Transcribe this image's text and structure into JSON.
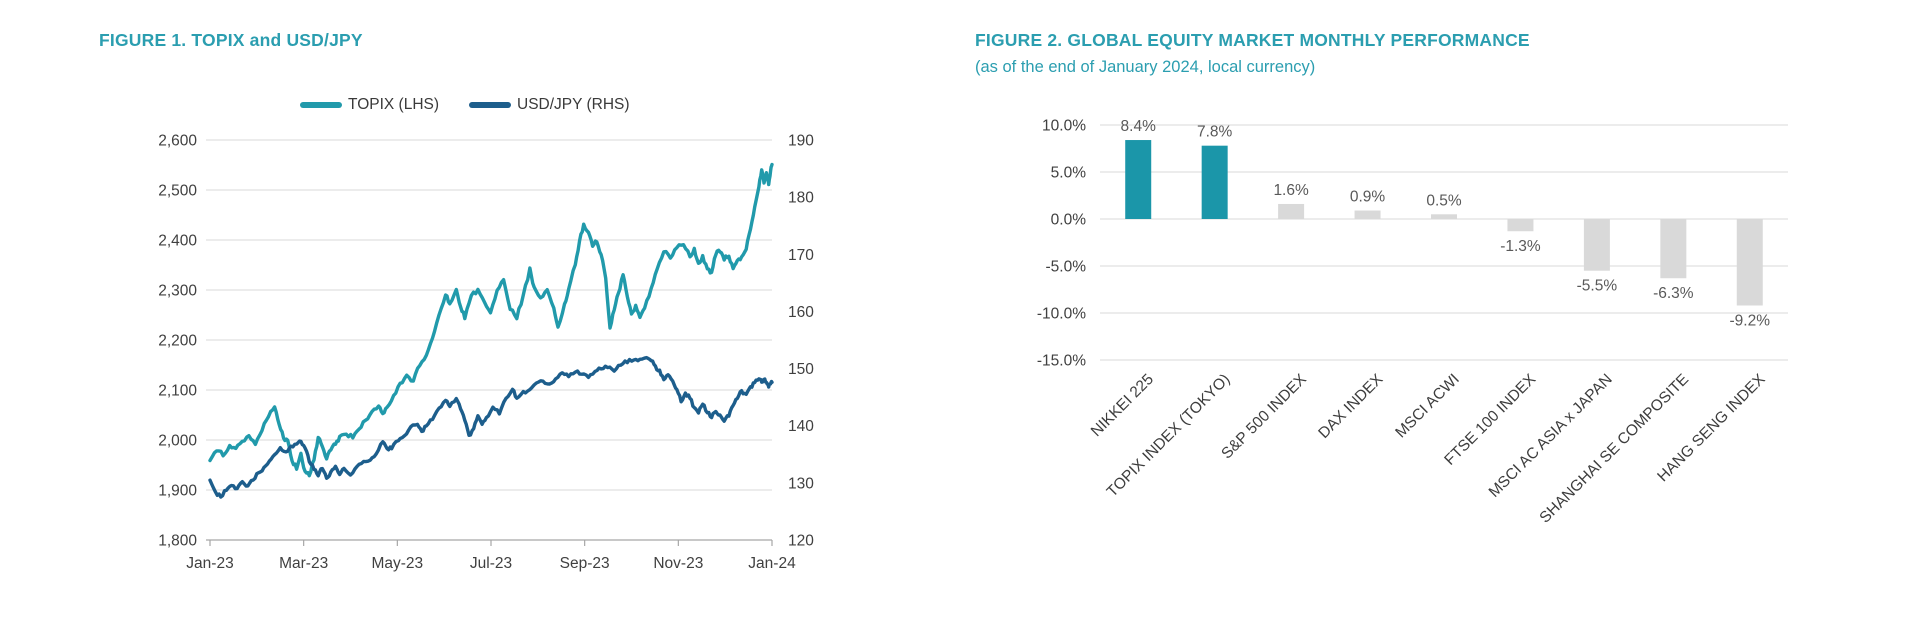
{
  "colors": {
    "title_teal": "#2b9eb0",
    "topix_teal": "#219aab",
    "usdjpy_blue": "#1d5e8c",
    "bar_highlight": "#1b96a9",
    "bar_default": "#d9d9d9",
    "grid": "#d9d9d9",
    "axis_line": "#a6a6a6",
    "axis_text": "#404040",
    "value_label_text": "#595959",
    "category_text": "#3d3d3d"
  },
  "chart_data": [
    {
      "type": "line",
      "title": "FIGURE 1. TOPIX and USD/JPY",
      "x_tick_labels": [
        "Jan-23",
        "Mar-23",
        "May-23",
        "Jul-23",
        "Sep-23",
        "Nov-23",
        "Jan-24"
      ],
      "x_tick_positions": [
        0,
        2,
        4,
        6,
        8,
        10,
        12
      ],
      "x_range_months": [
        0,
        12
      ],
      "grid": "on",
      "legend_position": "top",
      "y_left": {
        "range": [
          1800,
          2600
        ],
        "step": 100,
        "tick_labels": [
          "2,600",
          "2,500",
          "2,400",
          "2,300",
          "2,200",
          "2,100",
          "2,000",
          "1,900",
          "1,800"
        ]
      },
      "y_right": {
        "range": [
          120,
          190
        ],
        "step": 10,
        "tick_labels": [
          "190",
          "180",
          "170",
          "160",
          "150",
          "140",
          "130",
          "120"
        ]
      },
      "series": [
        {
          "name": "TOPIX (LHS)",
          "axis": "left",
          "color": "#219aab",
          "points": [
            [
              0,
              1958
            ],
            [
              0.14,
              1980
            ],
            [
              0.28,
              1970
            ],
            [
              0.42,
              1990
            ],
            [
              0.55,
              1984
            ],
            [
              0.69,
              1996
            ],
            [
              0.83,
              2008
            ],
            [
              0.97,
              1992
            ],
            [
              1.11,
              2020
            ],
            [
              1.25,
              2046
            ],
            [
              1.38,
              2068
            ],
            [
              1.48,
              2030
            ],
            [
              1.57,
              2004
            ],
            [
              1.66,
              1998
            ],
            [
              1.75,
              1960
            ],
            [
              1.85,
              1942
            ],
            [
              1.94,
              1972
            ],
            [
              2.03,
              1936
            ],
            [
              2.12,
              1930
            ],
            [
              2.22,
              1962
            ],
            [
              2.31,
              2006
            ],
            [
              2.4,
              1986
            ],
            [
              2.49,
              1962
            ],
            [
              2.58,
              1980
            ],
            [
              2.68,
              1992
            ],
            [
              2.77,
              2006
            ],
            [
              2.91,
              2012
            ],
            [
              3.05,
              2006
            ],
            [
              3.18,
              2022
            ],
            [
              3.32,
              2038
            ],
            [
              3.46,
              2056
            ],
            [
              3.6,
              2070
            ],
            [
              3.69,
              2052
            ],
            [
              3.78,
              2064
            ],
            [
              3.92,
              2088
            ],
            [
              4.06,
              2112
            ],
            [
              4.2,
              2128
            ],
            [
              4.34,
              2118
            ],
            [
              4.48,
              2150
            ],
            [
              4.62,
              2168
            ],
            [
              4.75,
              2205
            ],
            [
              4.89,
              2248
            ],
            [
              5.03,
              2290
            ],
            [
              5.12,
              2272
            ],
            [
              5.26,
              2302
            ],
            [
              5.35,
              2268
            ],
            [
              5.44,
              2244
            ],
            [
              5.58,
              2290
            ],
            [
              5.72,
              2300
            ],
            [
              5.86,
              2278
            ],
            [
              5.99,
              2256
            ],
            [
              6.13,
              2298
            ],
            [
              6.27,
              2322
            ],
            [
              6.41,
              2262
            ],
            [
              6.55,
              2244
            ],
            [
              6.69,
              2288
            ],
            [
              6.83,
              2342
            ],
            [
              6.92,
              2306
            ],
            [
              7.06,
              2284
            ],
            [
              7.2,
              2300
            ],
            [
              7.34,
              2262
            ],
            [
              7.43,
              2226
            ],
            [
              7.57,
              2270
            ],
            [
              7.66,
              2302
            ],
            [
              7.8,
              2352
            ],
            [
              7.89,
              2398
            ],
            [
              7.98,
              2432
            ],
            [
              8.08,
              2415
            ],
            [
              8.17,
              2386
            ],
            [
              8.26,
              2398
            ],
            [
              8.35,
              2372
            ],
            [
              8.45,
              2322
            ],
            [
              8.54,
              2222
            ],
            [
              8.63,
              2262
            ],
            [
              8.72,
              2292
            ],
            [
              8.82,
              2332
            ],
            [
              8.91,
              2286
            ],
            [
              9,
              2250
            ],
            [
              9.09,
              2268
            ],
            [
              9.18,
              2244
            ],
            [
              9.28,
              2262
            ],
            [
              9.42,
              2302
            ],
            [
              9.55,
              2342
            ],
            [
              9.69,
              2378
            ],
            [
              9.83,
              2362
            ],
            [
              9.97,
              2386
            ],
            [
              10.11,
              2392
            ],
            [
              10.25,
              2368
            ],
            [
              10.34,
              2382
            ],
            [
              10.43,
              2352
            ],
            [
              10.52,
              2368
            ],
            [
              10.62,
              2342
            ],
            [
              10.71,
              2334
            ],
            [
              10.8,
              2372
            ],
            [
              10.89,
              2378
            ],
            [
              10.98,
              2362
            ],
            [
              11.08,
              2368
            ],
            [
              11.17,
              2344
            ],
            [
              11.26,
              2358
            ],
            [
              11.35,
              2366
            ],
            [
              11.45,
              2382
            ],
            [
              11.54,
              2420
            ],
            [
              11.63,
              2465
            ],
            [
              11.72,
              2508
            ],
            [
              11.78,
              2542
            ],
            [
              11.83,
              2512
            ],
            [
              11.88,
              2536
            ],
            [
              11.93,
              2510
            ],
            [
              11.97,
              2540
            ],
            [
              12,
              2551
            ]
          ]
        },
        {
          "name": "USD/JPY (RHS)",
          "axis": "right",
          "color": "#1d5e8c",
          "points": [
            [
              0,
              130.4
            ],
            [
              0.12,
              128.4
            ],
            [
              0.23,
              127.4
            ],
            [
              0.35,
              128.8
            ],
            [
              0.46,
              129.6
            ],
            [
              0.58,
              128.9
            ],
            [
              0.69,
              130.1
            ],
            [
              0.81,
              129.4
            ],
            [
              0.92,
              130.6
            ],
            [
              1.04,
              131.8
            ],
            [
              1.15,
              132.6
            ],
            [
              1.27,
              133.9
            ],
            [
              1.38,
              134.8
            ],
            [
              1.5,
              136.2
            ],
            [
              1.62,
              135.4
            ],
            [
              1.73,
              136.4
            ],
            [
              1.85,
              136.9
            ],
            [
              1.94,
              137.3
            ],
            [
              2.03,
              136
            ],
            [
              2.12,
              133.8
            ],
            [
              2.22,
              132.4
            ],
            [
              2.31,
              131.3
            ],
            [
              2.4,
              132.6
            ],
            [
              2.49,
              130.9
            ],
            [
              2.58,
              131.8
            ],
            [
              2.68,
              132.9
            ],
            [
              2.77,
              131.5
            ],
            [
              2.86,
              132.4
            ],
            [
              3,
              131.4
            ],
            [
              3.14,
              132.8
            ],
            [
              3.28,
              133.6
            ],
            [
              3.42,
              133.9
            ],
            [
              3.55,
              135.1
            ],
            [
              3.69,
              137.3
            ],
            [
              3.78,
              135.9
            ],
            [
              3.88,
              136.1
            ],
            [
              4.02,
              137.5
            ],
            [
              4.15,
              138.3
            ],
            [
              4.29,
              139.7
            ],
            [
              4.43,
              140.3
            ],
            [
              4.52,
              139
            ],
            [
              4.62,
              139.9
            ],
            [
              4.75,
              141.2
            ],
            [
              4.89,
              143
            ],
            [
              5.03,
              144.5
            ],
            [
              5.12,
              143.4
            ],
            [
              5.26,
              144.6
            ],
            [
              5.35,
              143
            ],
            [
              5.44,
              140.9
            ],
            [
              5.53,
              138.3
            ],
            [
              5.63,
              139.4
            ],
            [
              5.72,
              141.8
            ],
            [
              5.81,
              140.2
            ],
            [
              5.9,
              141.4
            ],
            [
              6.04,
              143.2
            ],
            [
              6.18,
              142.2
            ],
            [
              6.32,
              144.8
            ],
            [
              6.46,
              146.4
            ],
            [
              6.55,
              144.9
            ],
            [
              6.69,
              145.9
            ],
            [
              6.83,
              146.3
            ],
            [
              6.97,
              147.4
            ],
            [
              7.11,
              147.8
            ],
            [
              7.25,
              147.4
            ],
            [
              7.38,
              148.3
            ],
            [
              7.52,
              149.4
            ],
            [
              7.66,
              148.7
            ],
            [
              7.8,
              149.5
            ],
            [
              7.94,
              149
            ],
            [
              8.08,
              148.5
            ],
            [
              8.22,
              149.6
            ],
            [
              8.35,
              149.9
            ],
            [
              8.49,
              150.3
            ],
            [
              8.63,
              149.7
            ],
            [
              8.77,
              150.7
            ],
            [
              8.91,
              151.2
            ],
            [
              9.05,
              151.5
            ],
            [
              9.18,
              151.7
            ],
            [
              9.32,
              151.9
            ],
            [
              9.42,
              151.4
            ],
            [
              9.51,
              150.3
            ],
            [
              9.6,
              149.6
            ],
            [
              9.69,
              148.2
            ],
            [
              9.78,
              148.9
            ],
            [
              9.88,
              147.9
            ],
            [
              9.97,
              146.4
            ],
            [
              10.06,
              144.3
            ],
            [
              10.15,
              145.6
            ],
            [
              10.25,
              144.9
            ],
            [
              10.34,
              143.1
            ],
            [
              10.43,
              142.2
            ],
            [
              10.52,
              143.9
            ],
            [
              10.62,
              142.4
            ],
            [
              10.71,
              141.5
            ],
            [
              10.8,
              142.6
            ],
            [
              10.89,
              141.9
            ],
            [
              10.98,
              140.9
            ],
            [
              11.08,
              141.8
            ],
            [
              11.17,
              143.4
            ],
            [
              11.26,
              144.9
            ],
            [
              11.35,
              146.1
            ],
            [
              11.45,
              145.4
            ],
            [
              11.54,
              146.7
            ],
            [
              11.63,
              147.7
            ],
            [
              11.72,
              148.3
            ],
            [
              11.78,
              147.6
            ],
            [
              11.83,
              148.1
            ],
            [
              11.88,
              147.5
            ],
            [
              11.93,
              146.9
            ],
            [
              11.97,
              147.4
            ],
            [
              12,
              147.6
            ]
          ]
        }
      ]
    },
    {
      "type": "bar",
      "title": "FIGURE 2. GLOBAL EQUITY MARKET MONTHLY PERFORMANCE",
      "subtitle": "(as of the end of January 2024, local currency)",
      "categories": [
        "NIKKEI 225",
        "TOPIX INDEX (TOKYO)",
        "S&P 500 INDEX",
        "DAX INDEX",
        "MSCI ACWI",
        "FTSE 100 INDEX",
        "MSCI AC ASIA x JAPAN",
        "SHANGHAI SE COMPOSITE",
        "HANG SENG INDEX"
      ],
      "values": [
        8.4,
        7.8,
        1.6,
        0.9,
        0.5,
        -1.3,
        -5.5,
        -6.3,
        -9.2
      ],
      "value_labels": [
        "8.4%",
        "7.8%",
        "1.6%",
        "0.9%",
        "0.5%",
        "-1.3%",
        "-5.5%",
        "-6.3%",
        "-9.2%"
      ],
      "y_tick_labels": [
        "10.0%",
        "5.0%",
        "0.0%",
        "-5.0%",
        "-10.0%",
        "-15.0%"
      ],
      "y_tick_values": [
        10,
        5,
        0,
        -5,
        -10,
        -15
      ],
      "ylim": [
        -15,
        10
      ],
      "grid": "on",
      "highlight_count": 2,
      "highlight_color": "#1b96a9",
      "default_color": "#d9d9d9"
    }
  ]
}
